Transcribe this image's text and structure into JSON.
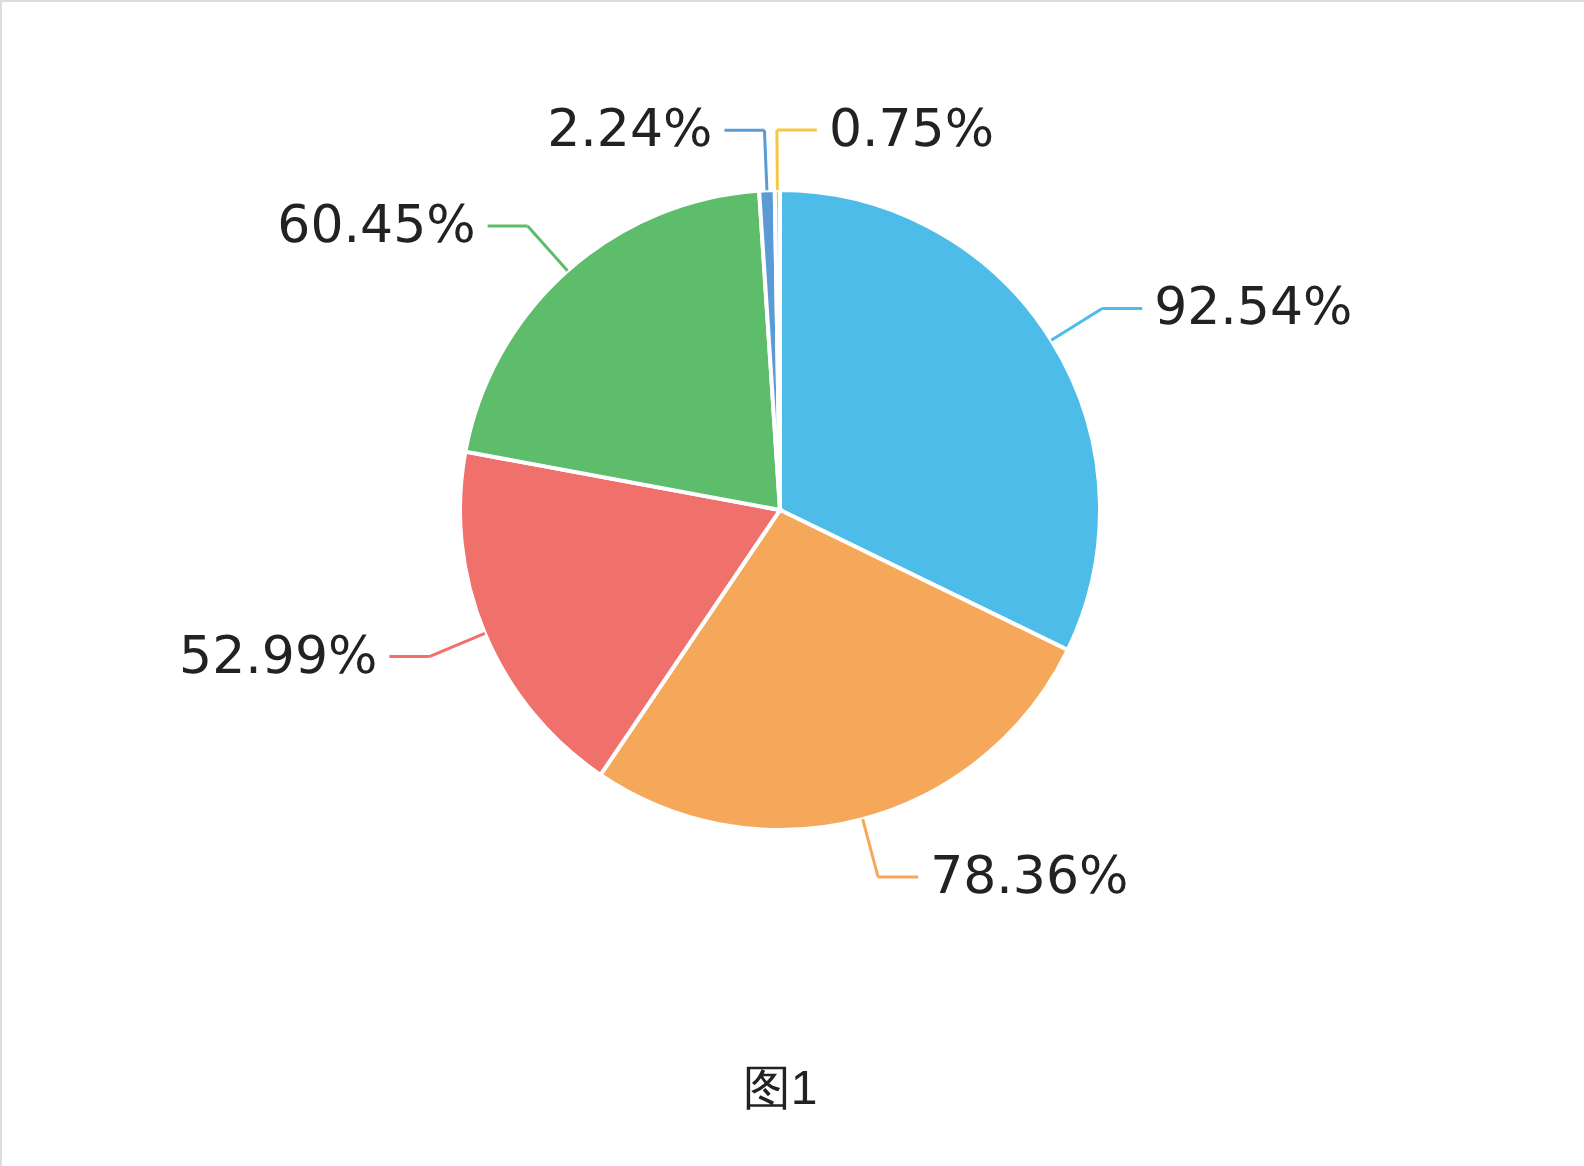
{
  "chart_data": {
    "type": "pie",
    "categories": [
      null,
      null,
      null,
      null,
      null,
      null
    ],
    "values": [
      92.54,
      78.36,
      52.99,
      60.45,
      2.24,
      0.75
    ],
    "colors": [
      "#4dbce9",
      "#f5a85a",
      "#f0706b",
      "#5dbd6a",
      "#5b9bd5",
      "#f5c842"
    ],
    "value_labels": [
      "92.54%",
      "78.36%",
      "52.99%",
      "60.45%",
      "2.24%",
      "0.75%"
    ],
    "annotations": [
      "图1"
    ]
  }
}
